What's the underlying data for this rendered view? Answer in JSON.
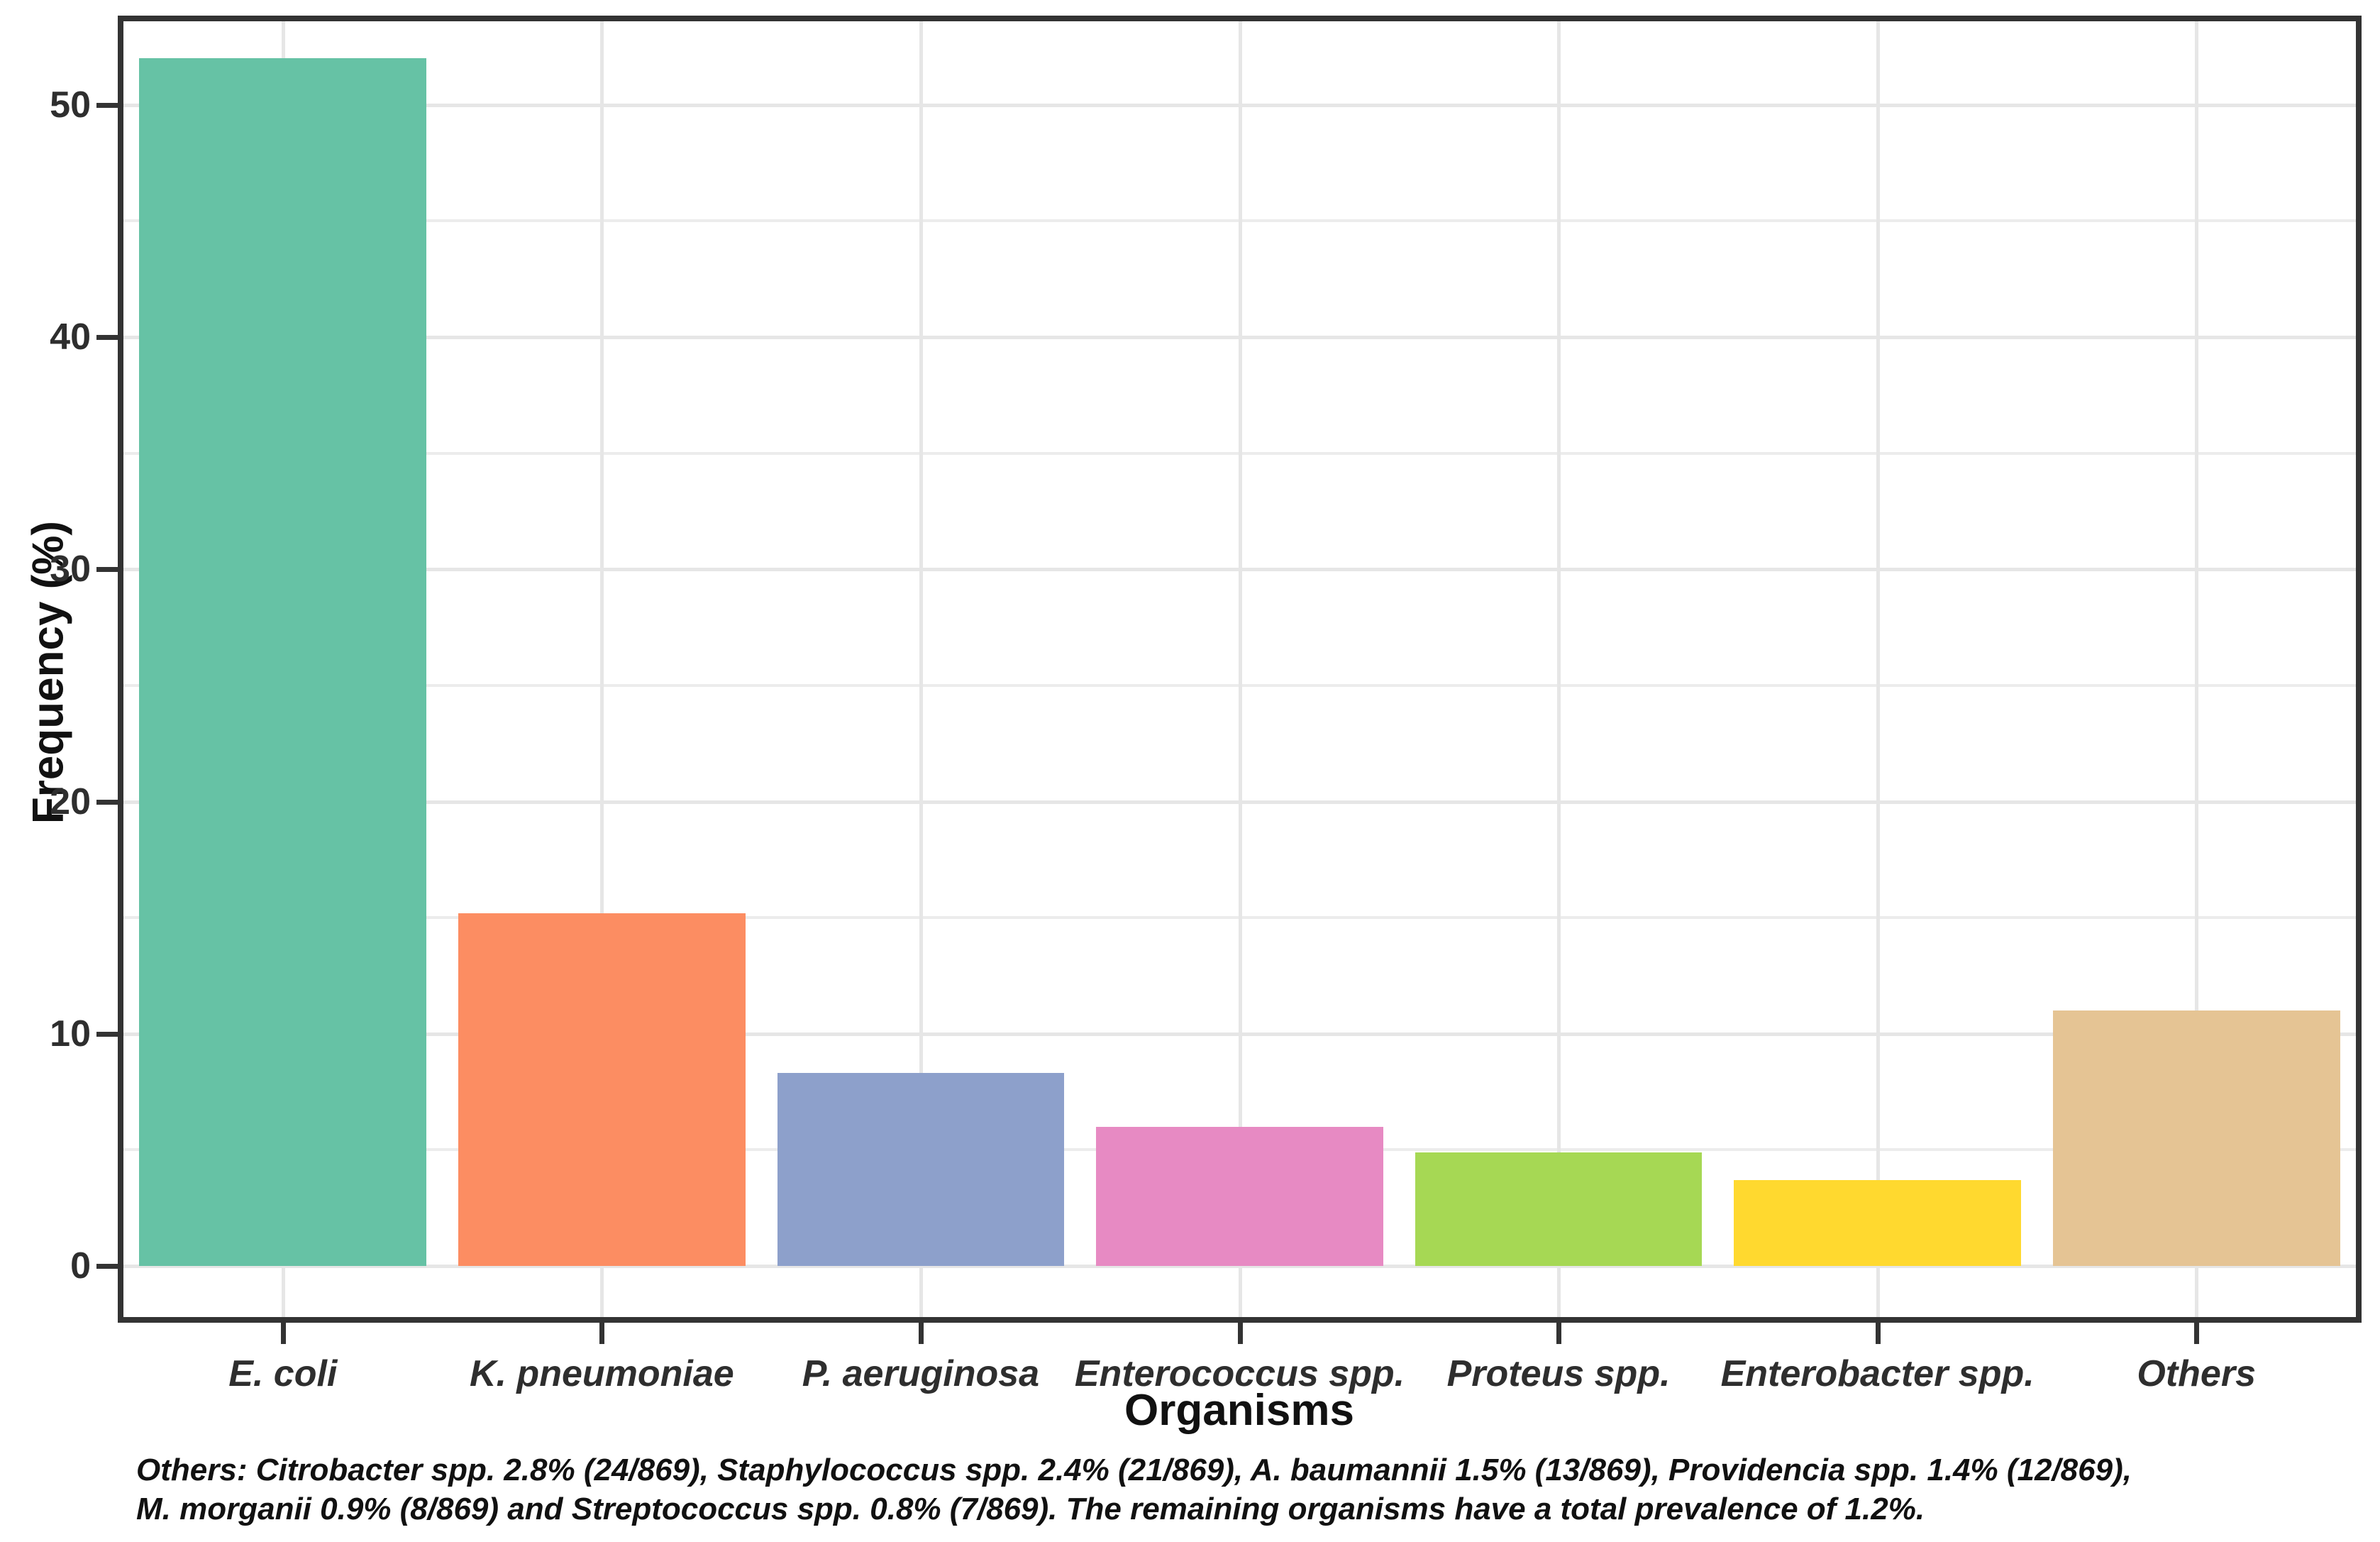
{
  "chart_data": {
    "type": "bar",
    "title": "",
    "categories": [
      "E. coli",
      "K. pneumoniae",
      "P. aeruginosa",
      "Enterococcus spp.",
      "Proteus spp.",
      "Enterobacter spp.",
      "Others"
    ],
    "values": [
      52.0,
      15.2,
      8.3,
      6.0,
      4.9,
      3.7,
      11.0
    ],
    "bar_colors": [
      "#66C2A5",
      "#FC8D62",
      "#8DA0CB",
      "#E78AC3",
      "#A6D854",
      "#FFD92F",
      "#E5C494"
    ],
    "xlabel": "Organisms",
    "ylabel": "Frequency (%)",
    "ylim": [
      -2.2,
      53.6
    ],
    "yticks": [
      0,
      10,
      20,
      30,
      40,
      50
    ],
    "y_minor_ticks": [
      5,
      15,
      25,
      35,
      45
    ],
    "grid": "major-and-minor",
    "legend_position": "none",
    "panel_border_color": "#333333",
    "gridline_color": "#e6e6e6"
  },
  "footnote": {
    "line1": "Others: Citrobacter spp. 2.8% (24/869), Staphylococcus spp. 2.4% (21/869), A. baumannii 1.5% (13/869), Providencia spp. 1.4% (12/869),",
    "line2": "M. morganii 0.9% (8/869) and Streptococcus spp. 0.8% (7/869). The remaining organisms have a total prevalence of 1.2%."
  }
}
